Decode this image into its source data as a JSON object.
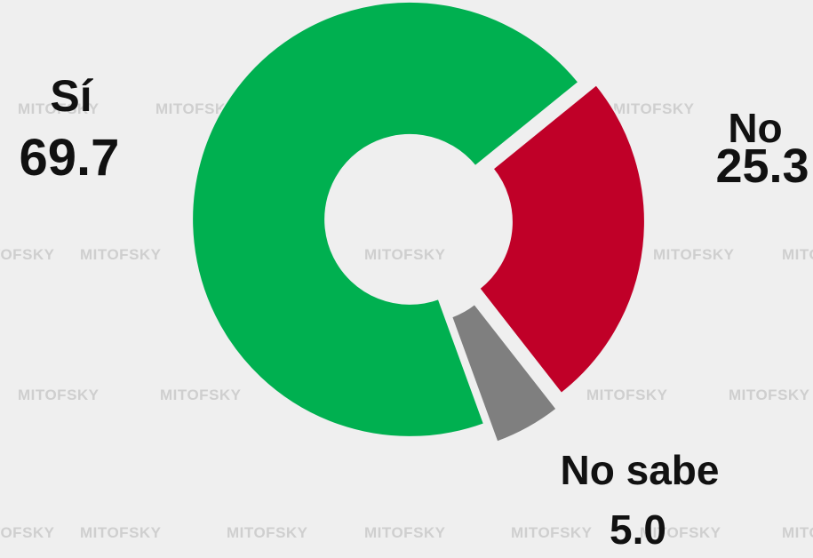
{
  "chart_data": {
    "type": "donut",
    "categories": [
      "Sí",
      "No",
      "No sabe"
    ],
    "values": [
      69.7,
      25.3,
      5.0
    ],
    "value_labels": [
      "69.7",
      "25.3",
      "5.0"
    ],
    "colors": [
      "#00b050",
      "#c00028",
      "#7f7f7f"
    ],
    "watermark": "MITOFSKY"
  }
}
